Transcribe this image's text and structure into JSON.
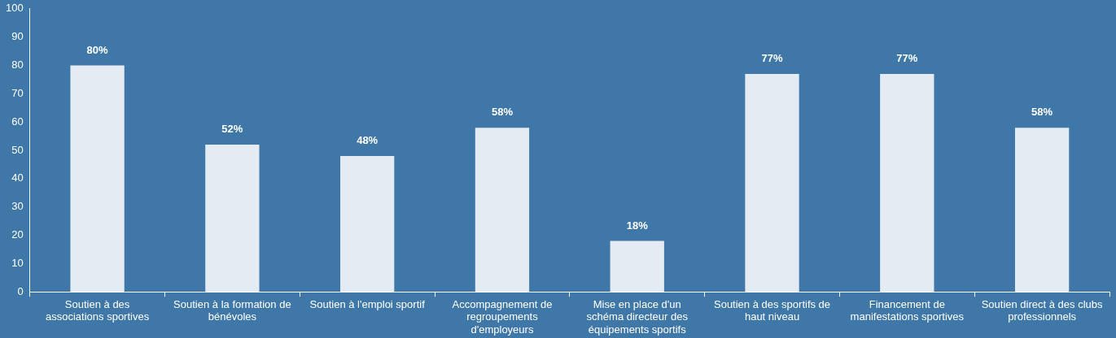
{
  "chart_data": {
    "type": "bar",
    "categories": [
      "Soutien à des associations sportives",
      "Soutien à la formation de bénévoles",
      "Soutien à l'emploi sportif",
      "Accompagnement de regroupements d'employeurs",
      "Mise en place d'un schéma directeur des équipements sportifs",
      "Soutien à des sportifs de haut niveau",
      "Financement de manifestations sportives",
      "Soutien direct à des clubs professionnels"
    ],
    "values": [
      80,
      52,
      48,
      58,
      18,
      77,
      77,
      58
    ],
    "value_labels": [
      "80%",
      "52%",
      "48%",
      "58%",
      "18%",
      "77%",
      "77%",
      "58%"
    ],
    "color": "#e4ebf2",
    "ylim": [
      0,
      100
    ],
    "yticks": [
      0,
      10,
      20,
      30,
      40,
      50,
      60,
      70,
      80,
      90,
      100
    ]
  }
}
